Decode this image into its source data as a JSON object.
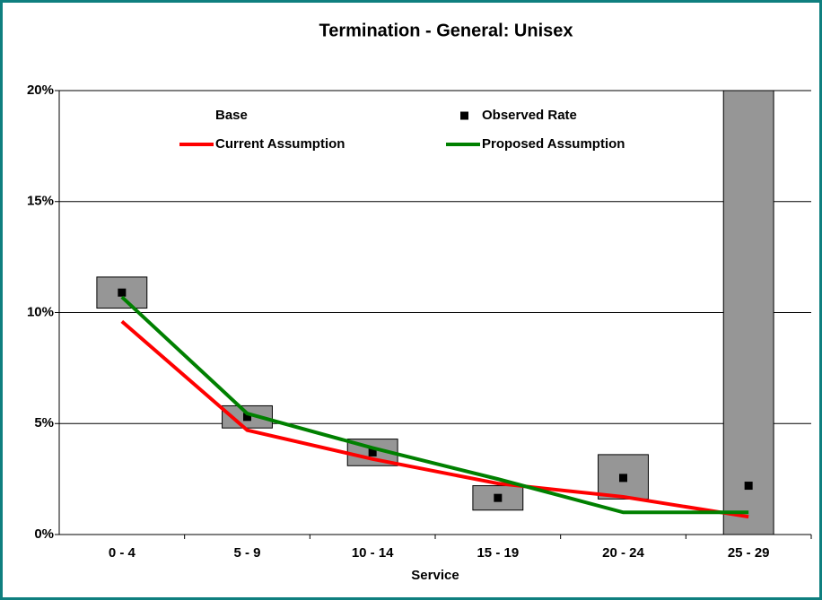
{
  "chart_data": {
    "type": "bar",
    "title": "Termination - General: Unisex",
    "x_label": "Service",
    "categories": [
      "0 - 4",
      "5 - 9",
      "10 - 14",
      "15 - 19",
      "20 - 24",
      "25 - 29"
    ],
    "ylim": [
      0,
      20
    ],
    "yticks": [
      {
        "value": 0,
        "label": "0%"
      },
      {
        "value": 5,
        "label": "5%"
      },
      {
        "value": 10,
        "label": "10%"
      },
      {
        "value": 15,
        "label": "15%"
      },
      {
        "value": 20,
        "label": "20%"
      }
    ],
    "grid": true,
    "series": [
      {
        "name": "Base",
        "type": "stacked-bar",
        "color": "none",
        "values": [
          10.2,
          4.8,
          3.1,
          1.1,
          1.6,
          0
        ]
      },
      {
        "type": "stacked-bar",
        "color": "#969696",
        "values": [
          1.4,
          1.0,
          1.2,
          1.1,
          2.0,
          20
        ]
      },
      {
        "name": "Observed Rate",
        "type": "scatter",
        "color": "#000000",
        "values": [
          10.9,
          5.3,
          3.7,
          1.65,
          2.55,
          2.2
        ]
      },
      {
        "name": "Current Assumption",
        "type": "line",
        "color": "#ff0000",
        "values": [
          9.6,
          4.7,
          3.4,
          2.3,
          1.7,
          0.8
        ]
      },
      {
        "name": "Proposed Assumption",
        "type": "line",
        "color": "#008000",
        "values": [
          10.7,
          5.45,
          3.9,
          2.5,
          1.0,
          1.0
        ]
      }
    ]
  }
}
